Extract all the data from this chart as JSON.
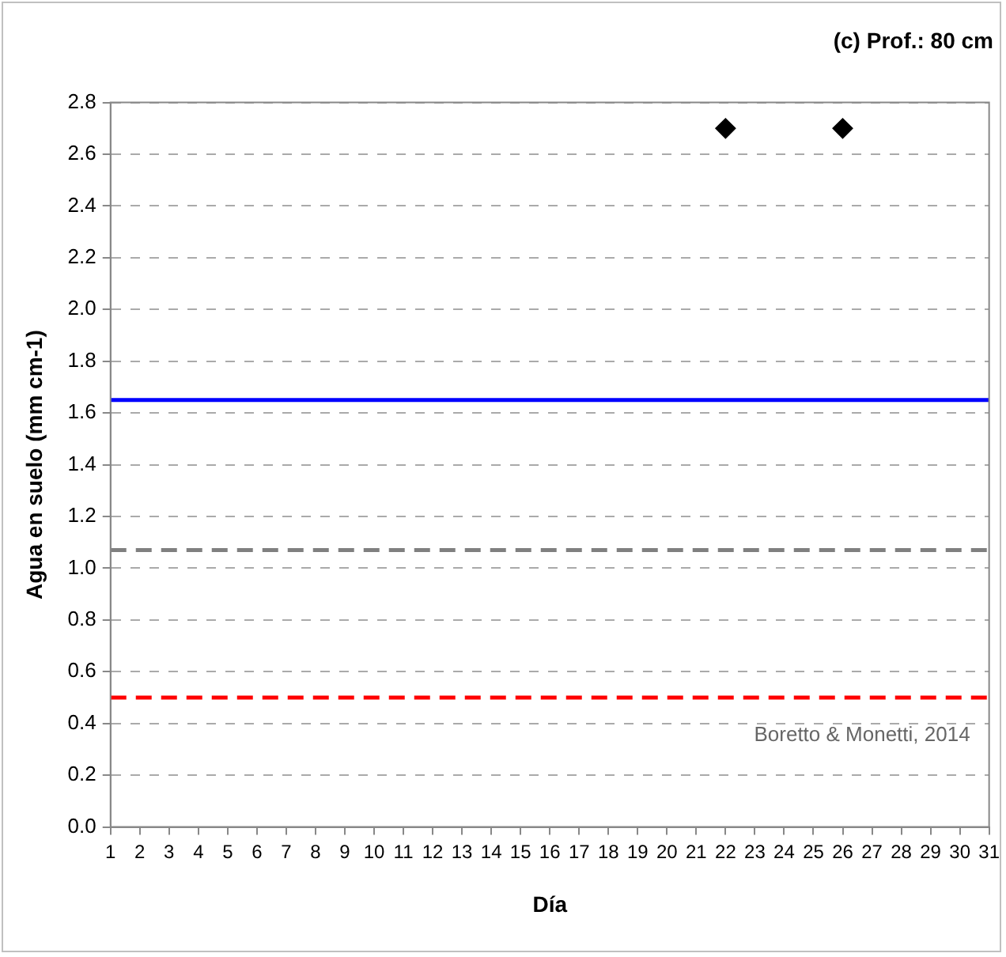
{
  "chart_data": {
    "type": "scatter",
    "title": "(c) Prof.: 80 cm",
    "xlabel": "Día",
    "ylabel": "Agua en suelo (mm cm-1)",
    "x": [
      22,
      26
    ],
    "series": [
      {
        "color": "#000000",
        "values": [
          2.7,
          2.7
        ]
      }
    ],
    "marker": "diamond",
    "xlim": [
      1,
      31
    ],
    "xticks": [
      1,
      2,
      3,
      4,
      5,
      6,
      7,
      8,
      9,
      10,
      11,
      12,
      13,
      14,
      15,
      16,
      17,
      18,
      19,
      20,
      21,
      22,
      23,
      24,
      25,
      26,
      27,
      28,
      29,
      30,
      31
    ],
    "ylim": [
      0,
      2.8
    ],
    "yticks": [
      {
        "value": 0,
        "label": "0.0"
      },
      0.2,
      0.4,
      0.6,
      0.8,
      {
        "value": 1,
        "label": "1.0"
      },
      1.2,
      1.4,
      1.6,
      1.8,
      {
        "value": 2,
        "label": "2.0"
      },
      2.2,
      2.4,
      2.6,
      2.8
    ],
    "ref_lines": [
      {
        "axis": "y",
        "value": 1.65,
        "color": "#0000ff",
        "line_style": "solid"
      },
      {
        "axis": "y",
        "value": 1.07,
        "color": "#808080",
        "line_style": "dashed"
      },
      {
        "axis": "y",
        "value": 0.5,
        "color": "#ff0000",
        "line_style": "dashed"
      }
    ],
    "annotations": [
      "Boretto & Monetti, 2014"
    ],
    "grid": "y",
    "legend": false
  }
}
